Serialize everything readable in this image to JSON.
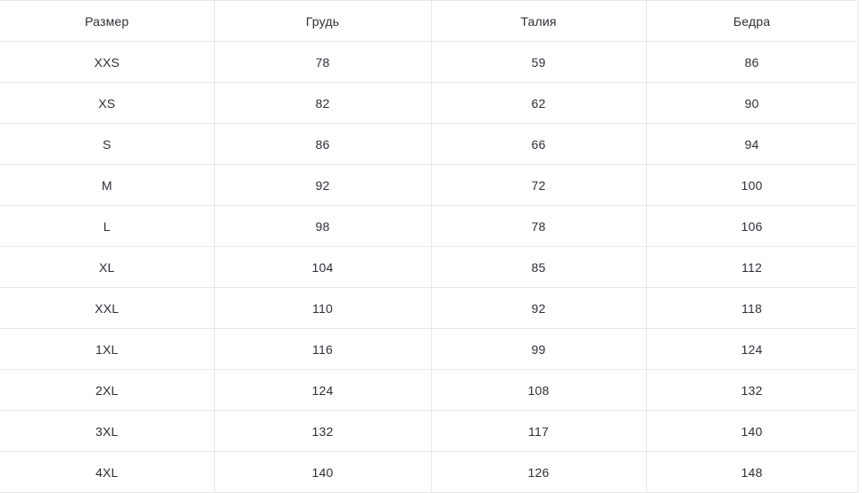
{
  "table": {
    "headers": {
      "size": "Размер",
      "chest": "Грудь",
      "waist": "Талия",
      "hips": "Бедра"
    },
    "rows": [
      {
        "size": "XXS",
        "chest": "78",
        "waist": "59",
        "hips": "86"
      },
      {
        "size": "XS",
        "chest": "82",
        "waist": "62",
        "hips": "90"
      },
      {
        "size": "S",
        "chest": "86",
        "waist": "66",
        "hips": "94"
      },
      {
        "size": "M",
        "chest": "92",
        "waist": "72",
        "hips": "100"
      },
      {
        "size": "L",
        "chest": "98",
        "waist": "78",
        "hips": "106"
      },
      {
        "size": "XL",
        "chest": "104",
        "waist": "85",
        "hips": "112"
      },
      {
        "size": "XXL",
        "chest": "110",
        "waist": "92",
        "hips": "118"
      },
      {
        "size": "1XL",
        "chest": "116",
        "waist": "99",
        "hips": "124"
      },
      {
        "size": "2XL",
        "chest": "124",
        "waist": "108",
        "hips": "132"
      },
      {
        "size": "3XL",
        "chest": "132",
        "waist": "117",
        "hips": "140"
      },
      {
        "size": "4XL",
        "chest": "140",
        "waist": "126",
        "hips": "148"
      }
    ]
  },
  "colors": {
    "border": "#e8e8e8",
    "text": "#2e2e38",
    "background": "#ffffff"
  }
}
